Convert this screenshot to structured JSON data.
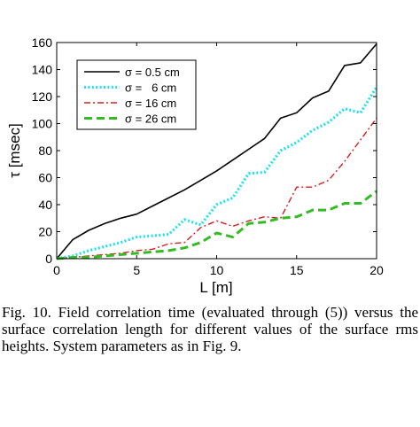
{
  "chart_data": {
    "type": "line",
    "xlabel": "L [m]",
    "ylabel": "τ [msec]",
    "xlim": [
      0,
      20
    ],
    "ylim": [
      0,
      160
    ],
    "xticks": [
      0,
      5,
      10,
      15,
      20
    ],
    "yticks": [
      0,
      20,
      40,
      60,
      80,
      100,
      120,
      140,
      160
    ],
    "grid": false,
    "legend_position": "top-left",
    "series": [
      {
        "name": "σ = 0.5 cm",
        "color": "#000000",
        "style": "solid",
        "x": [
          0,
          1,
          2,
          3,
          4,
          5,
          6,
          7,
          8,
          9,
          10,
          11,
          12,
          13,
          14,
          15,
          16,
          17,
          18,
          19,
          20
        ],
        "y": [
          0,
          14,
          21,
          26,
          30,
          33,
          39,
          45,
          51,
          58,
          65,
          73,
          81,
          89,
          104,
          108,
          119,
          124,
          143,
          145,
          159
        ]
      },
      {
        "name": "σ =   6 cm",
        "color": "#22e0f0",
        "style": "dotted",
        "x": [
          0,
          1,
          2,
          3,
          4,
          5,
          6,
          7,
          8,
          9,
          10,
          11,
          12,
          13,
          14,
          15,
          16,
          17,
          18,
          19,
          20
        ],
        "y": [
          0,
          2,
          6,
          9,
          12,
          16,
          17,
          18,
          29,
          25,
          40,
          45,
          63,
          64,
          80,
          86,
          95,
          101,
          111,
          108,
          127
        ]
      },
      {
        "name": "σ = 16 cm",
        "color": "#d42020",
        "style": "dashdot",
        "x": [
          0,
          1,
          2,
          3,
          4,
          5,
          6,
          7,
          8,
          9,
          10,
          11,
          12,
          13,
          14,
          15,
          16,
          17,
          18,
          19,
          20
        ],
        "y": [
          0,
          1,
          2,
          3,
          4,
          6,
          7,
          11,
          12,
          23,
          28,
          24,
          28,
          31,
          30,
          53,
          53,
          58,
          72,
          88,
          104
        ]
      },
      {
        "name": "σ = 26 cm",
        "color": "#33bb22",
        "style": "dashed",
        "x": [
          0,
          1,
          2,
          3,
          4,
          5,
          6,
          7,
          8,
          9,
          10,
          11,
          12,
          13,
          14,
          15,
          16,
          17,
          18,
          19,
          20
        ],
        "y": [
          0,
          1,
          1,
          2,
          3,
          4,
          5,
          6,
          8,
          12,
          19,
          16,
          26,
          27,
          30,
          31,
          36,
          36,
          41,
          41,
          50
        ]
      }
    ]
  },
  "caption": "Fig. 10. Field correlation time (evaluated through (5)) versus the surface correlation length for different values of the surface rms heights. System parameters as in Fig. 9."
}
